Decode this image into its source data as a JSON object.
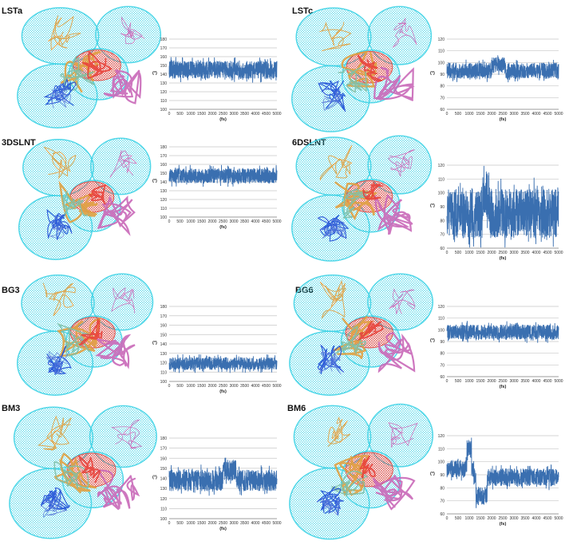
{
  "chart_data": [
    {
      "type": "line",
      "label": "LSTa",
      "ylabel": "(°)",
      "xlabel": "(fs)",
      "ylim": [
        100,
        180
      ],
      "yticks": [
        100,
        110,
        120,
        130,
        140,
        150,
        160,
        170,
        180
      ],
      "xlim": [
        0,
        5000
      ],
      "xticks": [
        0,
        500,
        1000,
        1500,
        2000,
        2500,
        3000,
        3500,
        4000,
        4500,
        5000
      ],
      "grid": true,
      "series": [
        {
          "color": "#3a6fb0",
          "mean": 145,
          "band": [
            133,
            157
          ],
          "events": []
        }
      ]
    },
    {
      "type": "line",
      "label": "LSTc",
      "ylabel": "(°)",
      "xlabel": "(fs)",
      "ylim": [
        60,
        120
      ],
      "yticks": [
        60,
        70,
        80,
        90,
        100,
        110,
        120
      ],
      "xlim": [
        0,
        5000
      ],
      "xticks": [
        0,
        500,
        1000,
        1500,
        2000,
        2500,
        3000,
        3500,
        4000,
        4500,
        5000
      ],
      "grid": true,
      "series": [
        {
          "color": "#3a6fb0",
          "mean": 93,
          "band": [
            86,
            102
          ],
          "events": [
            {
              "from": 2000,
              "to": 2600,
              "shift": 5
            }
          ]
        }
      ]
    },
    {
      "type": "line",
      "label": "3DSLNT",
      "ylabel": "(°)",
      "xlabel": "(fs)",
      "ylim": [
        100,
        180
      ],
      "yticks": [
        100,
        110,
        120,
        130,
        140,
        150,
        160,
        170,
        180
      ],
      "xlim": [
        0,
        5000
      ],
      "xticks": [
        0,
        500,
        1000,
        1500,
        2000,
        2500,
        3000,
        3500,
        4000,
        4500,
        5000
      ],
      "grid": true,
      "series": [
        {
          "color": "#3a6fb0",
          "mean": 147,
          "band": [
            137,
            157
          ],
          "events": []
        }
      ]
    },
    {
      "type": "line",
      "label": "6DSLNT",
      "ylabel": "(°)",
      "xlabel": "(fs)",
      "ylim": [
        60,
        120
      ],
      "yticks": [
        60,
        70,
        80,
        90,
        100,
        110,
        120
      ],
      "xlim": [
        0,
        5000
      ],
      "xticks": [
        0,
        500,
        1000,
        1500,
        2000,
        2500,
        3000,
        3500,
        4000,
        4500,
        5000
      ],
      "grid": true,
      "series": [
        {
          "color": "#3a6fb0",
          "mean": 85,
          "band": [
            64,
            106
          ],
          "events": [
            {
              "from": 1600,
              "to": 1900,
              "shift": 12
            }
          ]
        }
      ]
    },
    {
      "type": "line",
      "label": "BG3",
      "ylabel": "(°)",
      "xlabel": "(fs)",
      "ylim": [
        100,
        180
      ],
      "yticks": [
        100,
        110,
        120,
        130,
        140,
        150,
        160,
        170,
        180
      ],
      "xlim": [
        0,
        5000
      ],
      "xticks": [
        0,
        500,
        1000,
        1500,
        2000,
        2500,
        3000,
        3500,
        4000,
        4500,
        5000
      ],
      "grid": true,
      "series": [
        {
          "color": "#3a6fb0",
          "mean": 119,
          "band": [
            111,
            127
          ],
          "events": []
        }
      ]
    },
    {
      "type": "line",
      "label": "BG6",
      "ylabel": "(°)",
      "xlabel": "(fs)",
      "ylim": [
        60,
        120
      ],
      "yticks": [
        60,
        70,
        80,
        90,
        100,
        110,
        120
      ],
      "xlim": [
        0,
        5000
      ],
      "xticks": [
        0,
        500,
        1000,
        1500,
        2000,
        2500,
        3000,
        3500,
        4000,
        4500,
        5000
      ],
      "grid": true,
      "series": [
        {
          "color": "#3a6fb0",
          "mean": 98,
          "band": [
            91,
            106
          ],
          "events": []
        }
      ]
    },
    {
      "type": "line",
      "label": "BM3",
      "ylabel": "(°)",
      "xlabel": "(fs)",
      "ylim": [
        100,
        180
      ],
      "yticks": [
        100,
        110,
        120,
        130,
        140,
        150,
        160,
        170,
        180
      ],
      "xlim": [
        0,
        5000
      ],
      "xticks": [
        0,
        500,
        1000,
        1500,
        2000,
        2500,
        3000,
        3500,
        4000,
        4500,
        5000
      ],
      "grid": true,
      "series": [
        {
          "color": "#3a6fb0",
          "mean": 138,
          "band": [
            125,
            150
          ],
          "events": [
            {
              "from": 2500,
              "to": 3100,
              "shift": 10
            }
          ]
        }
      ]
    },
    {
      "type": "line",
      "label": "BM6",
      "ylabel": "(°)",
      "xlabel": "(fs)",
      "ylim": [
        60,
        120
      ],
      "yticks": [
        60,
        70,
        80,
        90,
        100,
        110,
        120
      ],
      "xlim": [
        0,
        5000
      ],
      "xticks": [
        0,
        500,
        1000,
        1500,
        2000,
        2500,
        3000,
        3500,
        4000,
        4500,
        5000
      ],
      "grid": true,
      "series": [
        {
          "color": "#3a6fb0",
          "mean": 88,
          "band": [
            80,
            96
          ],
          "events": [
            {
              "from": 0,
              "to": 1200,
              "shift": 7
            },
            {
              "from": 900,
              "to": 1100,
              "shift": 15
            },
            {
              "from": 1300,
              "to": 1800,
              "shift": -14
            }
          ]
        }
      ]
    }
  ],
  "colors": {
    "mesh": "#3fd3e6",
    "line": "#3a6fb0",
    "red": "#e8413a",
    "pink": "#c968b8",
    "orange": "#e0a040",
    "blue": "#1f4fd6",
    "grid": "#c8c8c8"
  }
}
